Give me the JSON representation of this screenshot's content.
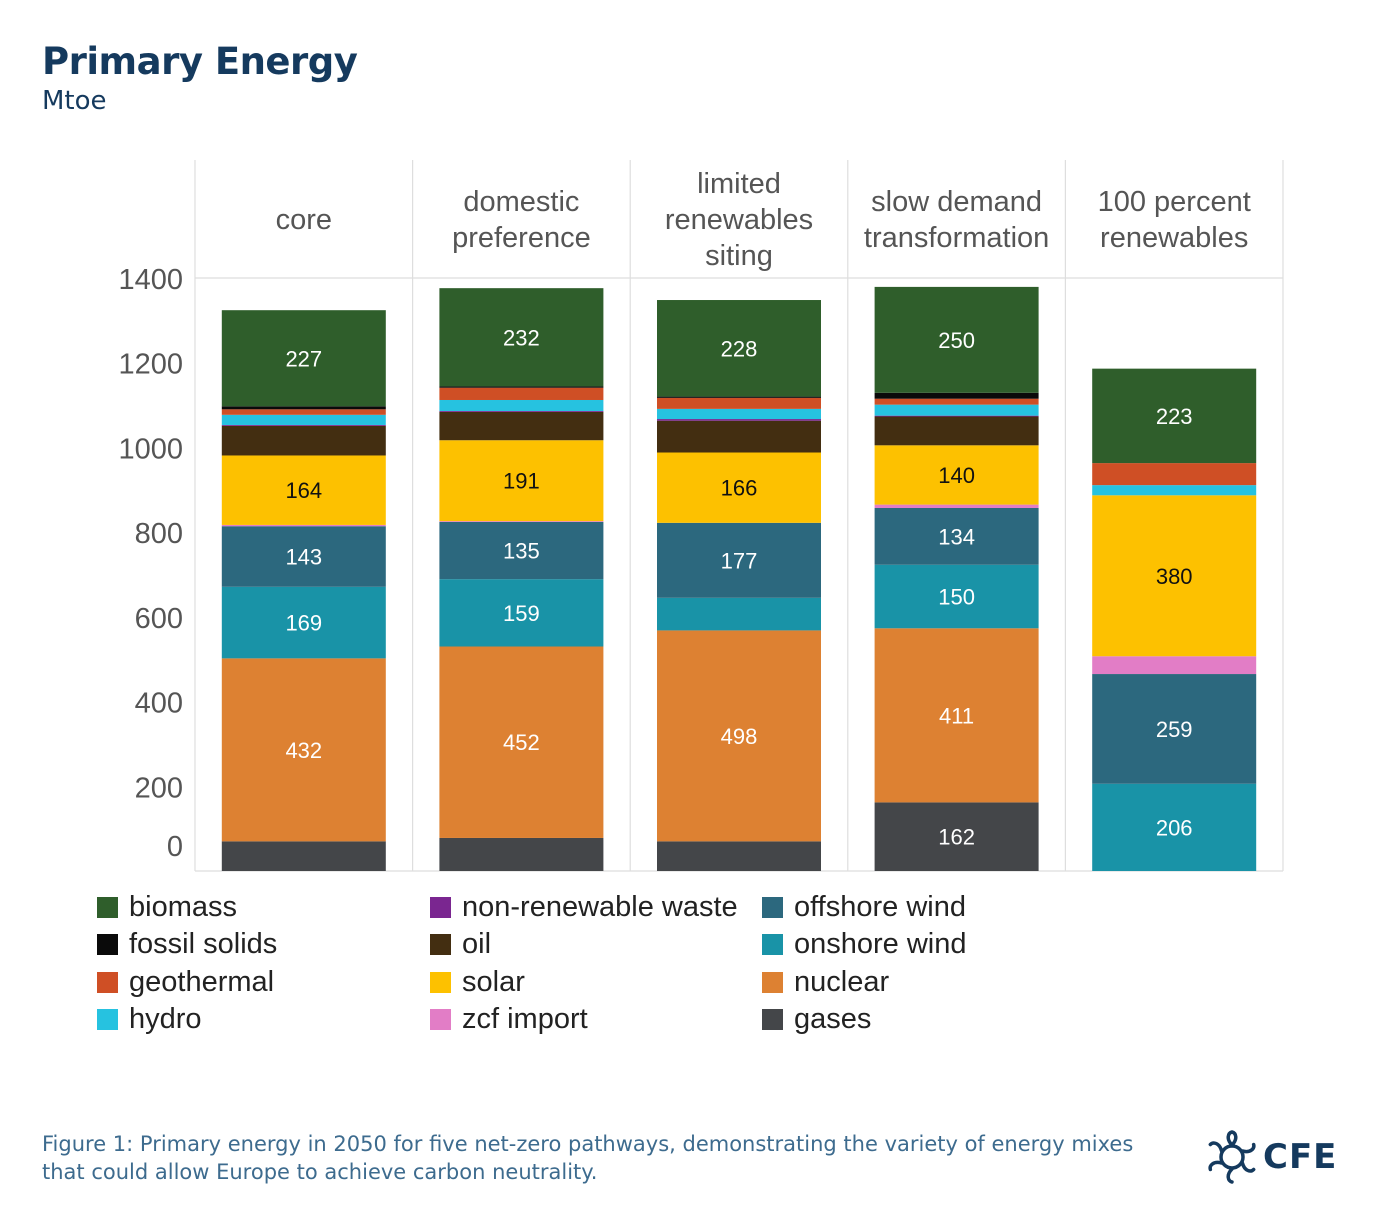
{
  "title": "Primary Energy",
  "subtitle": "Mtoe",
  "caption": "Figure 1: Primary energy in 2050 for five net-zero pathways, demonstrating the variety of energy mixes that could allow Europe to achieve carbon neutrality.",
  "logo": {
    "text": "CFE",
    "icon": "asterisk-gear-icon"
  },
  "colors": {
    "gases": "#444649",
    "nuclear": "#dd8132",
    "onshore wind": "#1993a7",
    "offshore wind": "#2c687e",
    "zcf import": "#e27dc6",
    "solar": "#fdc100",
    "oil": "#432e11",
    "non-renewable waste": "#7a2690",
    "hydro": "#26c2e0",
    "geothermal": "#cf4f25",
    "fossil solids": "#0a0a0a",
    "biomass": "#2f5e2b"
  },
  "legend": [
    {
      "name": "biomass"
    },
    {
      "name": "fossil solids"
    },
    {
      "name": "geothermal"
    },
    {
      "name": "hydro"
    },
    {
      "name": "non-renewable waste"
    },
    {
      "name": "oil"
    },
    {
      "name": "solar"
    },
    {
      "name": "zcf import"
    },
    {
      "name": "offshore wind"
    },
    {
      "name": "onshore wind"
    },
    {
      "name": "nuclear"
    },
    {
      "name": "gases"
    }
  ],
  "chart_data": {
    "type": "bar",
    "stacked": true,
    "title": "Primary Energy",
    "ylabel": "Mtoe",
    "ylim": [
      0,
      1400
    ],
    "yticks": [
      0,
      200,
      400,
      600,
      800,
      1000,
      1200,
      1400
    ],
    "grid": false,
    "categories": [
      "core",
      "domestic preference",
      "limited renewables siting",
      "slow demand transformation",
      "100 percent renewables"
    ],
    "category_lines": [
      [
        "core"
      ],
      [
        "domestic",
        "preference"
      ],
      [
        "limited",
        "renewables",
        "siting"
      ],
      [
        "slow demand",
        "transformation"
      ],
      [
        "100 percent",
        "renewables"
      ]
    ],
    "series": [
      {
        "name": "gases",
        "values": [
          70,
          78,
          70,
          162,
          0
        ],
        "labels": [
          null,
          null,
          null,
          "162",
          null
        ]
      },
      {
        "name": "nuclear",
        "values": [
          432,
          452,
          498,
          411,
          0
        ],
        "labels": [
          "432",
          "452",
          "498",
          null,
          null
        ]
      },
      {
        "name": "onshore wind",
        "values": [
          169,
          159,
          77,
          150,
          206
        ],
        "labels": [
          "169",
          "159",
          null,
          null,
          null
        ]
      },
      {
        "name": "offshore wind",
        "values": [
          143,
          135,
          177,
          134,
          259
        ],
        "labels": [
          "143",
          "135",
          "177",
          null,
          null
        ]
      },
      {
        "name": "zcf import",
        "values": [
          3,
          2,
          0,
          8,
          42
        ],
        "labels": [
          null,
          null,
          null,
          null,
          null
        ]
      },
      {
        "name": "solar",
        "values": [
          164,
          191,
          166,
          140,
          380
        ],
        "labels": [
          "164",
          "191",
          "166",
          null,
          "380"
        ]
      },
      {
        "name": "oil",
        "values": [
          70,
          67,
          75,
          68,
          0
        ],
        "labels": [
          null,
          null,
          null,
          null,
          null
        ]
      },
      {
        "name": "non-renewable waste",
        "values": [
          2,
          2,
          4,
          2,
          0
        ],
        "labels": [
          null,
          null,
          null,
          null,
          null
        ]
      },
      {
        "name": "hydro",
        "values": [
          24,
          26,
          24,
          26,
          24
        ],
        "labels": [
          null,
          null,
          null,
          null,
          null
        ]
      },
      {
        "name": "geothermal",
        "values": [
          13,
          29,
          26,
          14,
          52
        ],
        "labels": [
          null,
          null,
          null,
          null,
          null
        ]
      },
      {
        "name": "fossil solids",
        "values": [
          7,
          3,
          3,
          14,
          0
        ],
        "labels": [
          null,
          null,
          null,
          null,
          null
        ]
      },
      {
        "name": "biomass",
        "values": [
          227,
          232,
          228,
          250,
          223
        ],
        "labels": [
          "227",
          "232",
          "228",
          "250",
          "223"
        ]
      }
    ],
    "annotations": [
      {
        "category": "slow demand transformation",
        "series": "nuclear",
        "text": "411"
      },
      {
        "category": "slow demand transformation",
        "series": "onshore wind",
        "text": "150"
      },
      {
        "category": "slow demand transformation",
        "series": "offshore wind",
        "text": "134"
      },
      {
        "category": "slow demand transformation",
        "series": "solar",
        "text": "140"
      },
      {
        "category": "100 percent renewables",
        "series": "onshore wind",
        "text": "206"
      },
      {
        "category": "100 percent renewables",
        "series": "offshore wind",
        "text": "259"
      }
    ]
  }
}
